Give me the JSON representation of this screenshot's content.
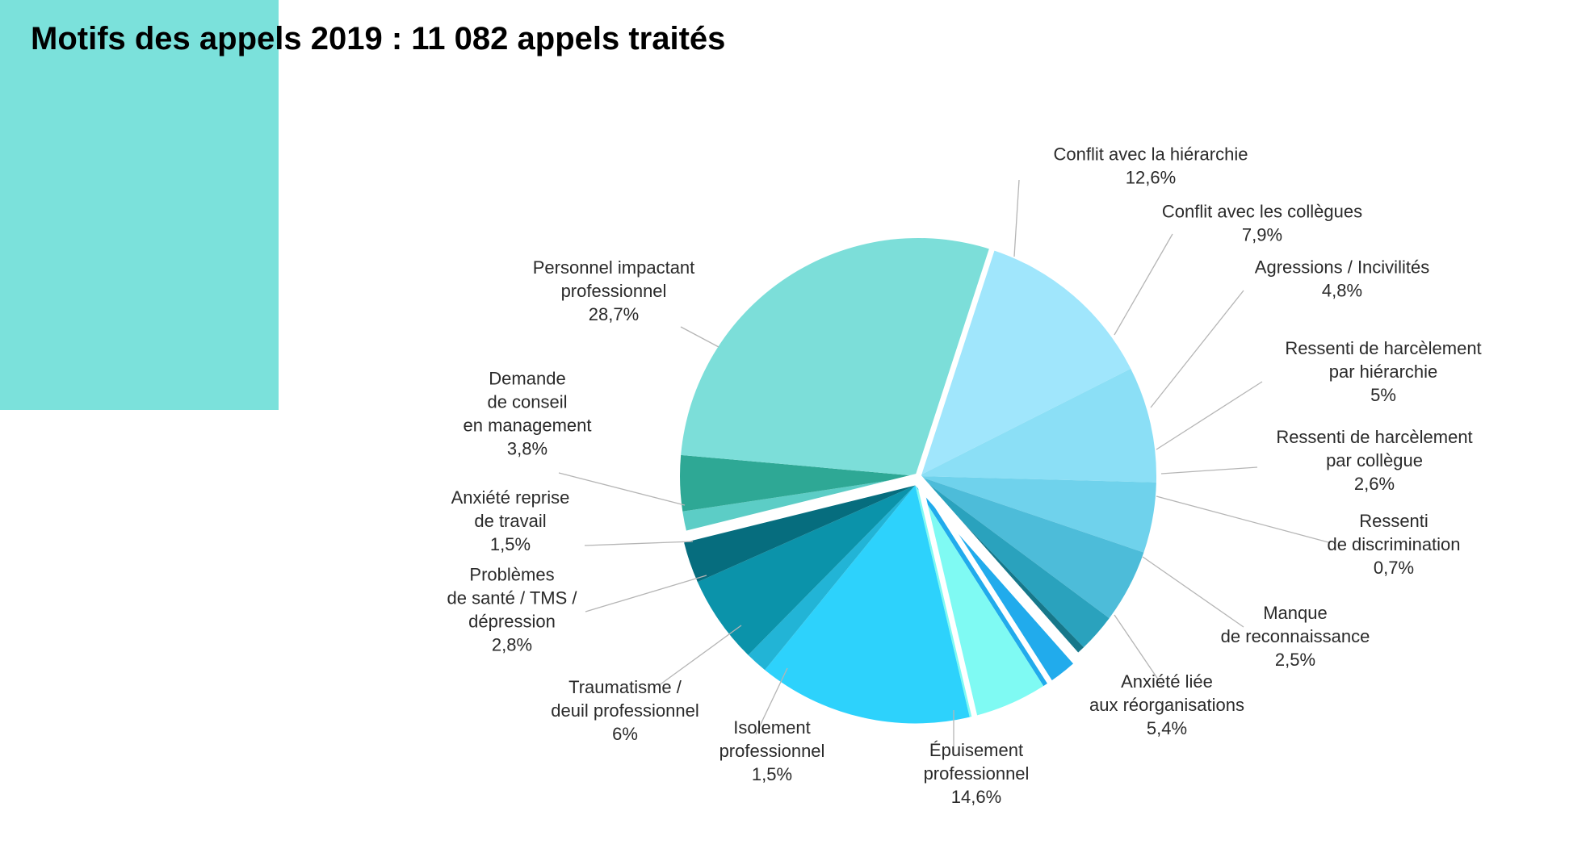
{
  "page": {
    "title": "Motifs des appels 2019 : 11 082 appels traités"
  },
  "colors": {
    "accent_block": "#7be1db",
    "title_text": "#000000"
  },
  "chart_data": {
    "type": "pie",
    "title": "Motifs des appels 2019 : 11 082 appels traités",
    "unit": "%",
    "slices": [
      {
        "name": "Conflit avec la hiérarchie",
        "value": 12.6,
        "value_label": "12,6%",
        "color": "#a0e6fc",
        "exploded": false
      },
      {
        "name": "Conflit avec les collègues",
        "value": 7.9,
        "value_label": "7,9%",
        "color": "#8bdff6",
        "exploded": false
      },
      {
        "name": "Agressions / Incivilités",
        "value": 4.8,
        "value_label": "4,8%",
        "color": "#6fd2ec",
        "exploded": false
      },
      {
        "name": "Ressenti de harcèlement par hiérarchie",
        "value": 5,
        "value_label": "5%",
        "color": "#4dbcd9",
        "exploded": false
      },
      {
        "name": "Ressenti de harcèlement par collègue",
        "value": 2.6,
        "value_label": "2,6%",
        "color": "#2aa2bd",
        "exploded": false
      },
      {
        "name": "Ressenti de discrimination",
        "value": 0.7,
        "value_label": "0,7%",
        "color": "#16778a",
        "exploded": false
      },
      {
        "name": "Manque de reconnaissance",
        "value": 2.5,
        "value_label": "2,5%",
        "color": "#21abec",
        "exploded": true
      },
      {
        "name": "Anxiété liée aux réorganisations",
        "value": 5.4,
        "value_label": "5,4%",
        "color": "#7ffaf3",
        "exploded": true
      },
      {
        "name": "Épuisement professionnel",
        "value": 14.6,
        "value_label": "14,6%",
        "color": "#2dd2fc",
        "exploded": true
      },
      {
        "name": "Isolement professionnel",
        "value": 1.5,
        "value_label": "1,5%",
        "color": "#22b4d6",
        "exploded": true
      },
      {
        "name": "Traumatisme / deuil professionnel",
        "value": 6,
        "value_label": "6%",
        "color": "#0b93aa",
        "exploded": true
      },
      {
        "name": "Problèmes de santé / TMS / dépression",
        "value": 2.8,
        "value_label": "2,8%",
        "color": "#066d7e",
        "exploded": true
      },
      {
        "name": "Anxiété reprise de travail",
        "value": 1.5,
        "value_label": "1,5%",
        "color": "#5ccdc6",
        "exploded": false
      },
      {
        "name": "Demande de conseil en management",
        "value": 3.8,
        "value_label": "3,8%",
        "color": "#2ea895",
        "exploded": false
      },
      {
        "name": "Personnel impactant professionnel",
        "value": 28.7,
        "value_label": "28,7%",
        "color": "#7cded9",
        "exploded": false
      }
    ],
    "labels": [
      {
        "lines": [
          "Conflit avec la hiérarchie",
          "12,6%"
        ]
      },
      {
        "lines": [
          "Conflit avec les collègues",
          "7,9%"
        ]
      },
      {
        "lines": [
          "Agressions / Incivilités",
          "4,8%"
        ]
      },
      {
        "lines": [
          "Ressenti de harcèlement",
          "par hiérarchie",
          "5%"
        ]
      },
      {
        "lines": [
          "Ressenti de harcèlement",
          "par collègue",
          "2,6%"
        ]
      },
      {
        "lines": [
          "Ressenti",
          "de discrimination",
          "0,7%"
        ]
      },
      {
        "lines": [
          "Manque",
          "de reconnaissance",
          "2,5%"
        ]
      },
      {
        "lines": [
          "Anxiété liée",
          "aux réorganisations",
          "5,4%"
        ]
      },
      {
        "lines": [
          "Épuisement",
          "professionnel",
          "14,6%"
        ]
      },
      {
        "lines": [
          "Isolement",
          "professionnel",
          "1,5%"
        ]
      },
      {
        "lines": [
          "Traumatisme /",
          "deuil professionnel",
          "6%"
        ]
      },
      {
        "lines": [
          "Problèmes",
          "de santé / TMS /",
          "dépression",
          "2,8%"
        ]
      },
      {
        "lines": [
          "Anxiété reprise",
          "de travail",
          "1,5%"
        ]
      },
      {
        "lines": [
          "Demande",
          "de conseil",
          "en management",
          "3,8%"
        ]
      },
      {
        "lines": [
          "Personnel impactant",
          "professionnel",
          "28,7%"
        ]
      }
    ],
    "legend": "none"
  }
}
